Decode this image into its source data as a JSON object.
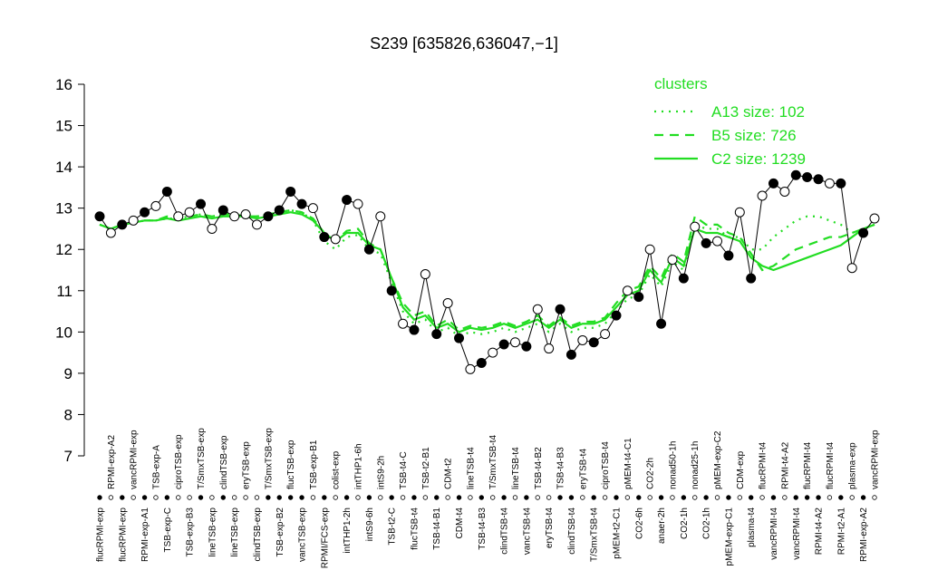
{
  "chart_data": {
    "type": "line",
    "title": "S239 [635826,636047,−1]",
    "categories": [
      "flucRPMI-exp",
      "RPMI-exp-A2",
      "flucRPMI-exp",
      "vancRPMI-exp",
      "RPMI-exp-A1",
      "TSB-exp-A",
      "TSB-exp-C",
      "ciproTSB-exp",
      "TSB-exp-B3",
      "T/SmxTSB-exp",
      "lineTSB-exp",
      "clindTSB-exp",
      "lineTSB-exp",
      "eryTSB-exp",
      "clindTSB-exp",
      "T/SmxTSB-exp",
      "TSB-exp-B2",
      "flucTSB-exp",
      "vancTSB-exp",
      "TSB-exp-B1",
      "RPMI/FCS-exp",
      "colist-exp",
      "intTHP1-2h",
      "intTHP1-6h",
      "intS9-6h",
      "intS9-2h",
      "TSB-t2-C",
      "TSB-t4-C",
      "flucTSB-t4",
      "TSB-t2-B1",
      "TSB-t4-B1",
      "CDM-t2",
      "CDM-t4",
      "lineTSB-t4",
      "TSB-t4-B3",
      "T/SmxTSB-t4",
      "clindTSB-t4",
      "lineTSB-t4",
      "vancTSB-t4",
      "TSB-t4-B2",
      "eryTSB-t4",
      "TSB-t4-B3",
      "clindTSB-t4",
      "eryTSB-t4",
      "T/SmxTSB-t4",
      "ciproTSB-t4",
      "pMEM-t2-C1",
      "pMEM-t4-C1",
      "CO2-6h",
      "CO2-2h",
      "anaer-2h",
      "nonad50-1h",
      "CO2-1h",
      "nonad25-1h",
      "CO2-1h",
      "pMEM-exp-C2",
      "pMEM-exp-C1",
      "CDM-exp",
      "plasma-t4",
      "flucRPMI-t4",
      "vancRPMI-t4",
      "RPMI-t4-A2",
      "vancRPMI-t4",
      "flucRPMI-t4",
      "RPMI-t4-A2",
      "flucRPMI-t4",
      "RPMI-t2-A1",
      "plasma-exp",
      "RPMI-exp-A2",
      "vancRPMI-exp"
    ],
    "values": [
      12.8,
      12.4,
      12.6,
      12.7,
      12.9,
      13.05,
      13.4,
      12.8,
      12.9,
      13.1,
      12.5,
      12.95,
      12.8,
      12.85,
      12.6,
      12.8,
      12.95,
      13.4,
      13.1,
      13.0,
      12.3,
      12.25,
      13.2,
      13.1,
      12.0,
      12.8,
      11.0,
      10.2,
      10.05,
      11.4,
      9.95,
      10.7,
      9.85,
      9.1,
      9.25,
      9.5,
      9.7,
      9.75,
      9.65,
      10.55,
      9.6,
      10.55,
      9.45,
      9.8,
      9.75,
      9.95,
      10.4,
      11.0,
      10.85,
      12.0,
      10.2,
      11.75,
      11.3,
      12.55,
      12.15,
      12.2,
      11.85,
      12.9,
      11.3,
      13.3,
      13.6,
      13.4,
      13.8,
      13.75,
      13.7,
      13.6,
      13.6,
      11.55,
      12.4,
      12.75
    ],
    "point_fills": [
      "#000000",
      "#ffffff",
      "#000000",
      "#ffffff",
      "#000000",
      "#ffffff",
      "#000000",
      "#ffffff",
      "#ffffff",
      "#000000",
      "#ffffff",
      "#000000",
      "#ffffff",
      "#ffffff",
      "#ffffff",
      "#000000",
      "#000000",
      "#000000",
      "#000000",
      "#ffffff",
      "#000000",
      "#ffffff",
      "#000000",
      "#ffffff",
      "#000000",
      "#ffffff",
      "#000000",
      "#ffffff",
      "#000000",
      "#ffffff",
      "#000000",
      "#ffffff",
      "#000000",
      "#ffffff",
      "#000000",
      "#ffffff",
      "#000000",
      "#ffffff",
      "#000000",
      "#ffffff",
      "#ffffff",
      "#000000",
      "#000000",
      "#ffffff",
      "#000000",
      "#ffffff",
      "#000000",
      "#ffffff",
      "#000000",
      "#ffffff",
      "#000000",
      "#ffffff",
      "#000000",
      "#ffffff",
      "#000000",
      "#ffffff",
      "#000000",
      "#ffffff",
      "#000000",
      "#ffffff",
      "#000000",
      "#ffffff",
      "#000000",
      "#000000",
      "#000000",
      "#ffffff",
      "#000000",
      "#ffffff",
      "#000000",
      "#ffffff"
    ],
    "legend_title": "clusters",
    "series": [
      {
        "name": "A13 size: 102",
        "color": "#22dd22",
        "dash": "dotted",
        "values": [
          12.6,
          12.5,
          12.6,
          12.65,
          12.7,
          12.7,
          12.75,
          12.75,
          12.8,
          12.85,
          12.8,
          12.85,
          12.85,
          12.85,
          12.8,
          12.85,
          12.9,
          12.95,
          12.9,
          12.7,
          12.2,
          12.0,
          12.3,
          12.35,
          12.0,
          11.9,
          11.2,
          10.5,
          10.2,
          10.3,
          10.0,
          10.1,
          9.9,
          10.0,
          9.95,
          10.0,
          10.1,
          10.0,
          10.1,
          10.2,
          10.0,
          10.2,
          10.0,
          10.1,
          10.1,
          10.2,
          10.5,
          10.8,
          10.9,
          11.4,
          11.1,
          11.7,
          11.5,
          12.6,
          12.5,
          12.5,
          12.3,
          12.3,
          12.0,
          12.0,
          12.3,
          12.5,
          12.7,
          12.8,
          12.8,
          12.7,
          12.6,
          12.4,
          12.5,
          12.6
        ]
      },
      {
        "name": "B5 size: 726",
        "color": "#22dd22",
        "dash": "dashed",
        "values": [
          12.6,
          12.5,
          12.6,
          12.65,
          12.7,
          12.7,
          12.8,
          12.75,
          12.8,
          12.85,
          12.8,
          12.85,
          12.85,
          12.8,
          12.8,
          12.85,
          12.9,
          12.95,
          12.9,
          12.75,
          12.4,
          12.2,
          12.45,
          12.5,
          12.15,
          12.0,
          11.3,
          10.7,
          10.4,
          10.5,
          10.15,
          10.3,
          10.05,
          10.15,
          10.1,
          10.15,
          10.25,
          10.15,
          10.25,
          10.4,
          10.15,
          10.35,
          10.15,
          10.25,
          10.25,
          10.35,
          10.7,
          11.0,
          11.1,
          11.6,
          11.3,
          11.9,
          11.7,
          12.8,
          12.6,
          12.6,
          12.4,
          12.3,
          11.9,
          11.5,
          11.6,
          11.8,
          12.0,
          12.1,
          12.2,
          12.3,
          12.3,
          12.4,
          12.5,
          12.6
        ]
      },
      {
        "name": "C2 size: 1239",
        "color": "#22dd22",
        "dash": "solid",
        "values": [
          12.6,
          12.5,
          12.6,
          12.65,
          12.7,
          12.7,
          12.75,
          12.7,
          12.75,
          12.8,
          12.75,
          12.8,
          12.8,
          12.8,
          12.75,
          12.8,
          12.85,
          12.9,
          12.85,
          12.7,
          12.4,
          12.2,
          12.4,
          12.4,
          12.1,
          12.0,
          11.3,
          10.6,
          10.3,
          10.4,
          10.1,
          10.2,
          10.0,
          10.1,
          10.05,
          10.1,
          10.2,
          10.1,
          10.2,
          10.3,
          10.1,
          10.3,
          10.1,
          10.2,
          10.2,
          10.3,
          10.6,
          10.9,
          11.0,
          11.5,
          11.2,
          11.8,
          11.6,
          12.5,
          12.4,
          12.4,
          12.3,
          12.2,
          11.8,
          11.6,
          11.5,
          11.6,
          11.7,
          11.8,
          11.9,
          12.0,
          12.1,
          12.3,
          12.5,
          12.6
        ]
      }
    ],
    "ylim": [
      7,
      16
    ],
    "yticks": [
      7,
      8,
      9,
      10,
      11,
      12,
      13,
      14,
      15,
      16
    ]
  }
}
